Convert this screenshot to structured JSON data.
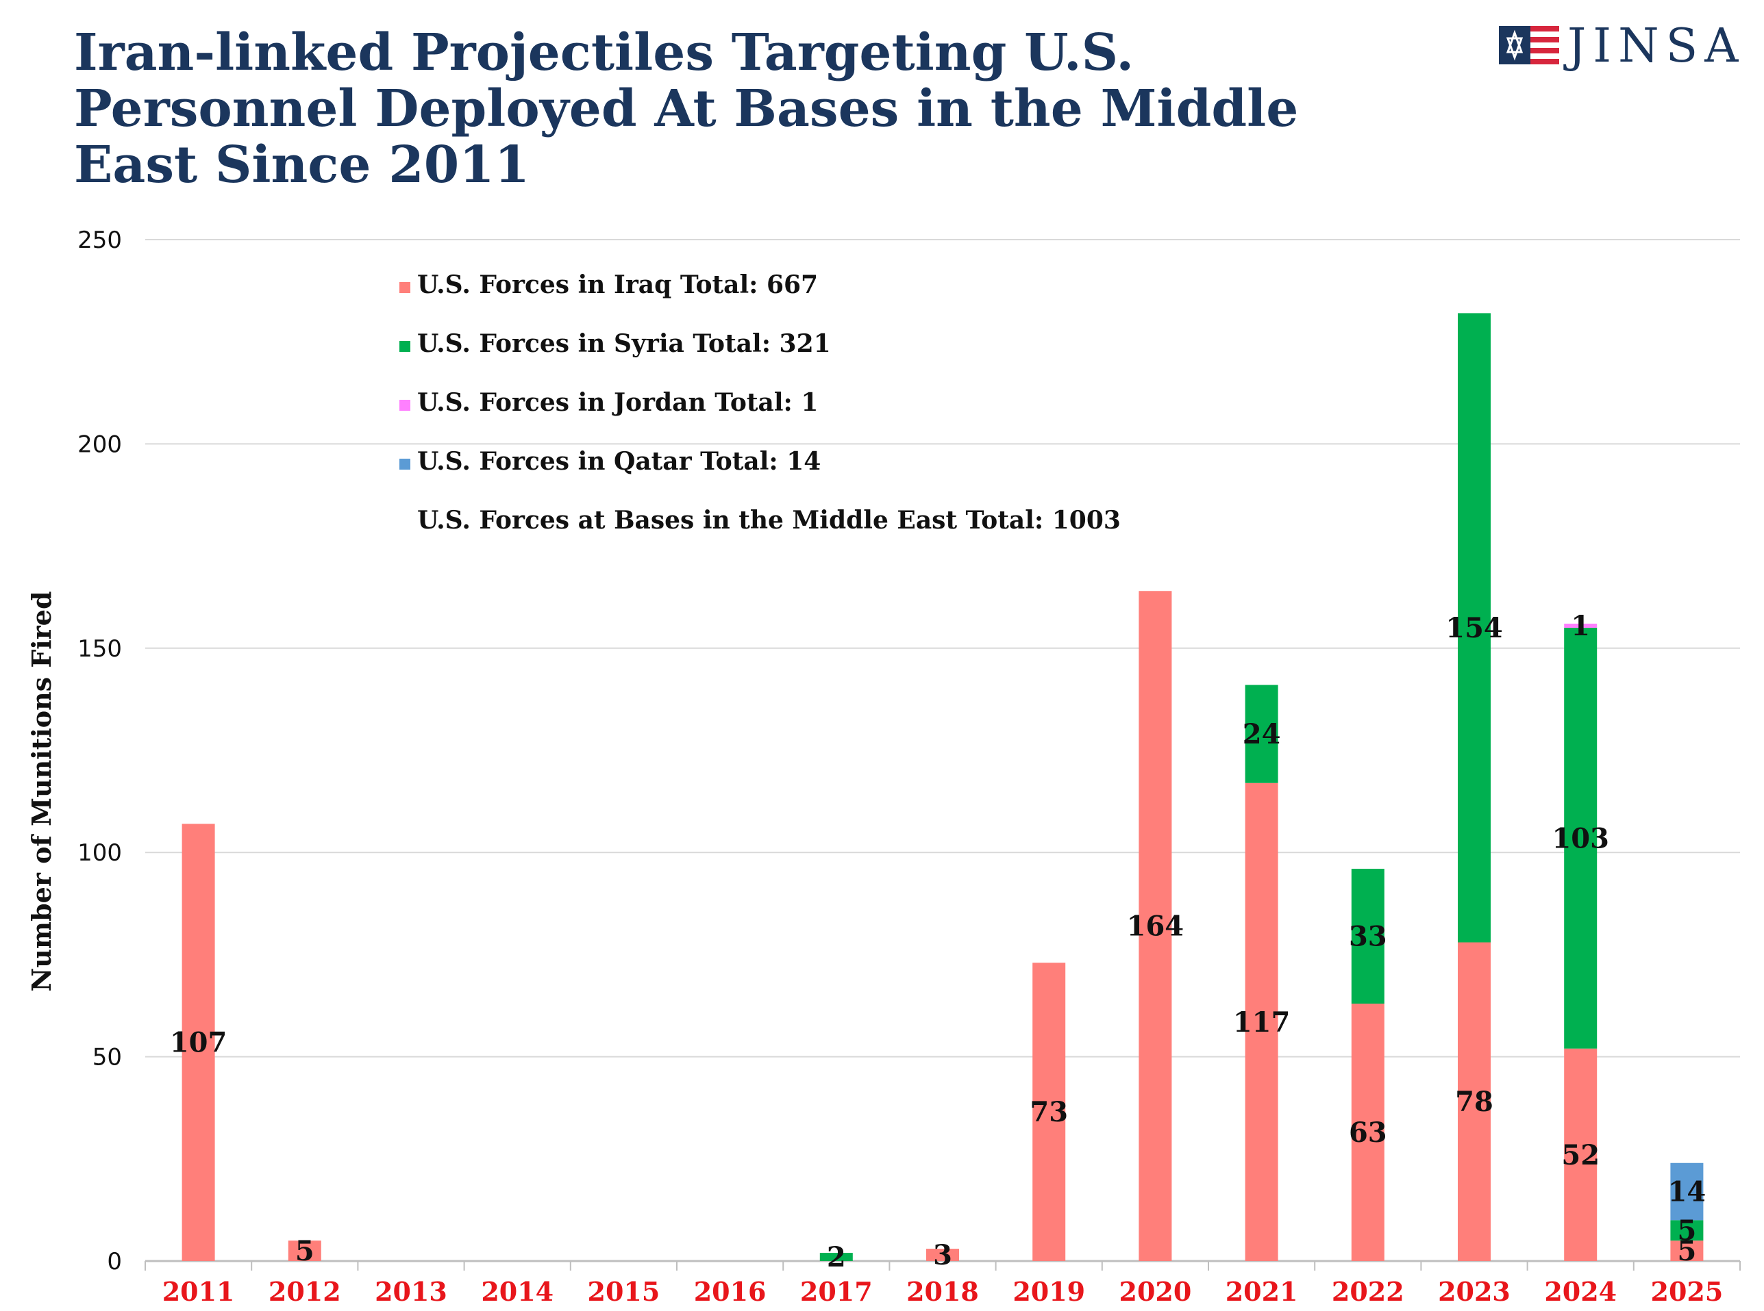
{
  "header": {
    "title_lines": [
      "Iran-linked Projectiles Targeting U.S.",
      "Personnel Deployed At Bases in the Middle",
      "East Since 2011"
    ],
    "logo_text": "JINSA"
  },
  "chart_data": {
    "type": "bar",
    "stacked": true,
    "title": "Iran-linked Projectiles Targeting U.S. Personnel Deployed At Bases in the Middle East Since 2011",
    "ylabel": "Number of Munitions Fired",
    "xlabel": "",
    "ylim": [
      0,
      250
    ],
    "yticks": [
      0,
      50,
      100,
      150,
      200,
      250
    ],
    "grid": true,
    "legend_position": "top-left",
    "categories": [
      "2011",
      "2012",
      "2013",
      "2014",
      "2015",
      "2016",
      "2017",
      "2018",
      "2019",
      "2020",
      "2021",
      "2022",
      "2023",
      "2024",
      "2025"
    ],
    "series": [
      {
        "name": "U.S. Forces in Iraq Total: 667",
        "color": "#ff7f7a",
        "values": [
          107,
          5,
          0,
          0,
          0,
          0,
          0,
          3,
          73,
          164,
          117,
          63,
          78,
          52,
          5
        ]
      },
      {
        "name": "U.S. Forces in Syria Total: 321",
        "color": "#00b050",
        "values": [
          0,
          0,
          0,
          0,
          0,
          0,
          2,
          0,
          0,
          0,
          24,
          33,
          154,
          103,
          5
        ]
      },
      {
        "name": "U.S. Forces in Jordan Total: 1",
        "color": "#ff80ff",
        "values": [
          0,
          0,
          0,
          0,
          0,
          0,
          0,
          0,
          0,
          0,
          0,
          0,
          0,
          1,
          0
        ]
      },
      {
        "name": "U.S. Forces in Qatar Total: 14",
        "color": "#5b9bd5",
        "values": [
          0,
          0,
          0,
          0,
          0,
          0,
          0,
          0,
          0,
          0,
          0,
          0,
          0,
          0,
          14
        ]
      }
    ],
    "legend_extra": "U.S. Forces at Bases in the Middle East Total: 1003",
    "category_label_color": "#e8161b"
  }
}
